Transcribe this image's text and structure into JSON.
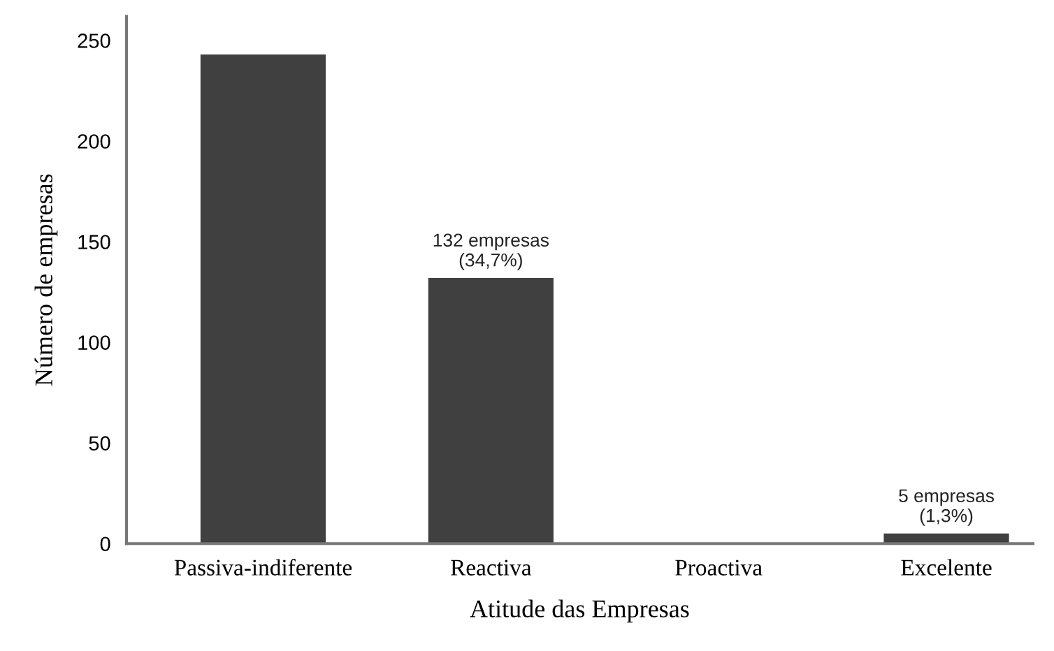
{
  "chart_data": {
    "type": "bar",
    "xlabel": "Atitude das Empresas",
    "ylabel": "Número de empresas",
    "categories": [
      "Passiva-indiferente",
      "Reactiva",
      "Proactiva",
      "Excelente"
    ],
    "values": [
      243,
      132,
      0,
      5
    ],
    "value_labels": [
      null,
      "132 empresas\n(34,7%)",
      null,
      "5 empresas\n(1,3%)"
    ],
    "color": "#404040",
    "ylim": [
      0,
      262
    ],
    "yticks": [
      0,
      50,
      100,
      150,
      200,
      250
    ],
    "grid": false
  }
}
